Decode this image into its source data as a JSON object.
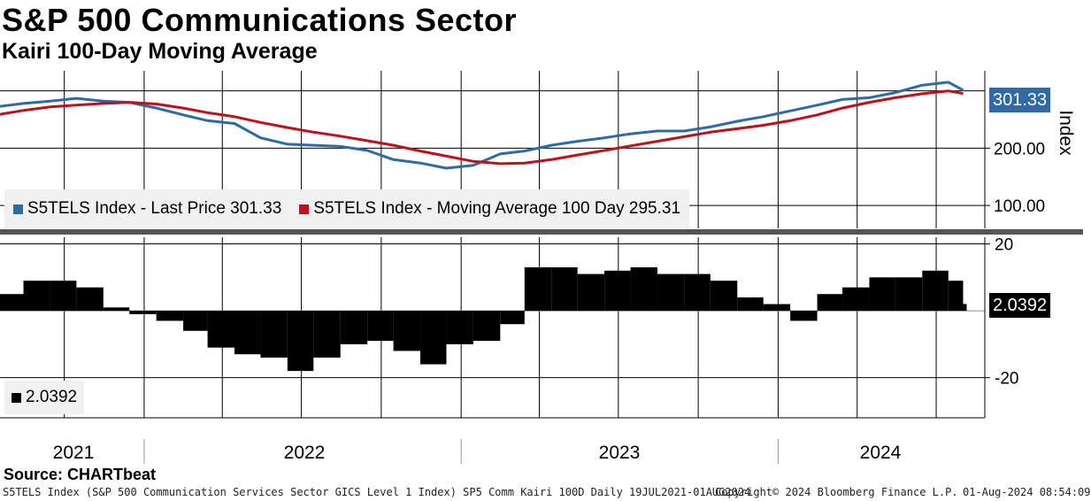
{
  "title": "S&P 500 Communications Sector",
  "subtitle": "Kairi 100-Day Moving Average",
  "source": "Source: CHARTbeat",
  "footer": {
    "left": "S5TELS Index (S&P 500 Communication Services Sector GICS Level 1 Index) SP5 Comm Kairi 100D  Daily 19JUL2021-01AUG2024",
    "middle": "Copyright© 2024 Bloomberg Finance L.P.",
    "right": "01-Aug-2024 08:54:09"
  },
  "colors": {
    "price": "#2e6aa8",
    "ma": "#c0101c",
    "kairi": "#000000",
    "legend_bg": "#f0f0f0"
  },
  "chart_data": [
    {
      "type": "line",
      "axis_label": "Index",
      "y_ticks": [
        "100.00",
        "200.00"
      ],
      "ylim": [
        60,
        335
      ],
      "last_value_tag": "301.33",
      "legend": [
        {
          "label": "S5TELS Index - Last Price 301.33",
          "color": "#2e6aa8"
        },
        {
          "label": "S5TELS Index - Moving Average 100 Day 295.31",
          "color": "#c0101c"
        }
      ],
      "x": [
        "2021-07-19",
        "2021-08-15",
        "2021-09-15",
        "2021-10-15",
        "2021-11-15",
        "2021-12-15",
        "2022-01-15",
        "2022-02-15",
        "2022-03-15",
        "2022-04-15",
        "2022-05-15",
        "2022-06-15",
        "2022-07-15",
        "2022-08-15",
        "2022-09-15",
        "2022-10-15",
        "2022-11-15",
        "2022-12-15",
        "2023-01-15",
        "2023-02-15",
        "2023-03-15",
        "2023-04-15",
        "2023-05-15",
        "2023-06-15",
        "2023-07-15",
        "2023-08-15",
        "2023-09-15",
        "2023-10-15",
        "2023-11-15",
        "2023-12-15",
        "2024-01-15",
        "2024-02-15",
        "2024-03-15",
        "2024-04-15",
        "2024-05-15",
        "2024-06-15",
        "2024-07-15",
        "2024-08-01"
      ],
      "series": [
        {
          "name": "S5TELS Index - Last Price",
          "values": [
            273,
            278,
            282,
            287,
            282,
            280,
            270,
            258,
            248,
            243,
            218,
            207,
            205,
            203,
            196,
            180,
            174,
            165,
            170,
            190,
            195,
            205,
            212,
            218,
            225,
            230,
            230,
            237,
            247,
            255,
            265,
            275,
            285,
            288,
            297,
            310,
            315,
            301.33
          ]
        },
        {
          "name": "S5TELS Index - Moving Average 100 Day",
          "values": [
            259,
            266,
            272,
            275,
            278,
            280,
            277,
            270,
            262,
            255,
            245,
            236,
            228,
            221,
            213,
            205,
            195,
            186,
            177,
            173,
            174,
            180,
            188,
            196,
            204,
            212,
            220,
            228,
            234,
            240,
            248,
            258,
            270,
            280,
            288,
            295,
            300,
            295.31
          ]
        }
      ]
    },
    {
      "type": "bar",
      "y_ticks": [
        "20",
        "-20"
      ],
      "ylim": [
        -32,
        22
      ],
      "last_value_tag": "2.0392",
      "legend": [
        {
          "label": "2.0392",
          "color": "#000000"
        }
      ],
      "x": [
        "2021-07-19",
        "2021-08-15",
        "2021-09-15",
        "2021-10-15",
        "2021-11-15",
        "2021-12-15",
        "2022-01-15",
        "2022-02-15",
        "2022-03-15",
        "2022-04-15",
        "2022-05-15",
        "2022-06-15",
        "2022-07-15",
        "2022-08-15",
        "2022-09-15",
        "2022-10-15",
        "2022-11-15",
        "2022-12-15",
        "2023-01-15",
        "2023-02-15",
        "2023-03-15",
        "2023-04-15",
        "2023-05-15",
        "2023-06-15",
        "2023-07-15",
        "2023-08-15",
        "2023-09-15",
        "2023-10-15",
        "2023-11-15",
        "2023-12-15",
        "2024-01-15",
        "2024-02-15",
        "2024-03-15",
        "2024-04-15",
        "2024-05-15",
        "2024-06-15",
        "2024-07-15",
        "2024-08-01"
      ],
      "values": [
        5,
        9,
        9,
        7,
        1,
        -1,
        -3,
        -6,
        -11,
        -13,
        -14,
        -18,
        -14,
        -10,
        -9,
        -12,
        -16,
        -10,
        -9,
        -4,
        13,
        13,
        11,
        12,
        13,
        11,
        11,
        9,
        4,
        2,
        -3,
        5,
        7,
        10,
        10,
        12,
        9,
        2.0392
      ]
    }
  ],
  "years": [
    "2021",
    "2022",
    "2023",
    "2024"
  ]
}
